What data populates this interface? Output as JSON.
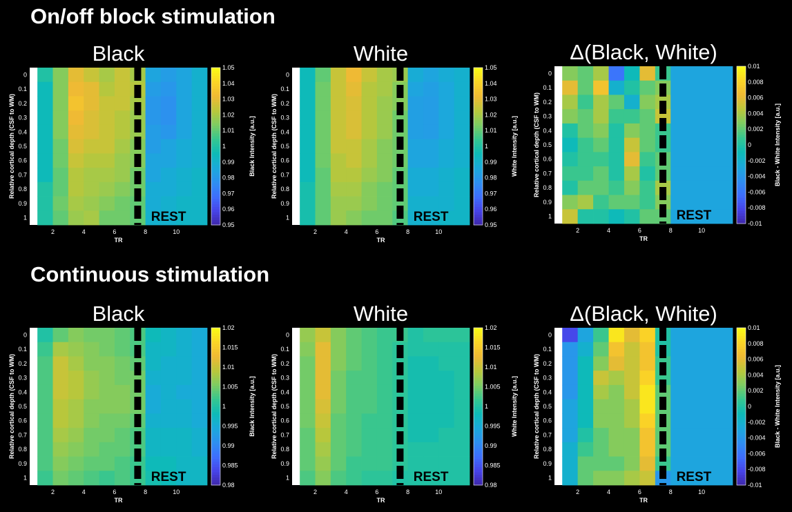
{
  "sections": [
    {
      "title": "On/off block stimulation"
    },
    {
      "title": "Continuous stimulation"
    }
  ],
  "rest_label": "REST",
  "colors": {
    "background": "#000000",
    "text": "#ffffff",
    "axes_bg": "#ffffff",
    "separator": "#000000",
    "rest_label": "#000000"
  },
  "colormap": [
    "#3e26a8",
    "#4744e8",
    "#3e6ffe",
    "#2d8ff0",
    "#1ba9db",
    "#0dbbb7",
    "#35c690",
    "#7ccc62",
    "#bac73b",
    "#efb934",
    "#fbd526",
    "#f9fb15"
  ],
  "chart_data": [
    {
      "type": "heatmap",
      "title": "Black",
      "xlabel": "TR",
      "ylabel": "Relative cortical depth (CSF to WM)",
      "colorbar_label": "Black Intensity [a.u.]",
      "clim": [
        0.95,
        1.05
      ],
      "colorbar_ticks": [
        "0.95",
        "0.96",
        "0.97",
        "0.98",
        "0.99",
        "1",
        "1.01",
        "1.02",
        "1.03",
        "1.04",
        "1.05"
      ],
      "x_ticks": [
        "2",
        "4",
        "6",
        "8",
        "10"
      ],
      "y_ticks": [
        "0",
        "0.1",
        "0.2",
        "0.3",
        "0.4",
        "0.5",
        "0.6",
        "0.7",
        "0.8",
        "0.9",
        "1"
      ],
      "n_tr": 11,
      "values": [
        [
          1.0,
          1.015,
          1.03,
          1.025,
          1.02,
          1.025,
          1.02,
          0.985,
          0.982,
          0.985,
          0.99
        ],
        [
          0.995,
          1.015,
          1.032,
          1.03,
          1.022,
          1.025,
          1.022,
          0.982,
          0.98,
          0.985,
          0.99
        ],
        [
          0.995,
          1.015,
          1.035,
          1.03,
          1.025,
          1.025,
          1.02,
          0.98,
          0.978,
          0.985,
          0.99
        ],
        [
          0.995,
          1.015,
          1.032,
          1.028,
          1.025,
          1.022,
          1.018,
          0.98,
          0.978,
          0.985,
          0.99
        ],
        [
          0.995,
          1.015,
          1.03,
          1.028,
          1.025,
          1.022,
          1.018,
          0.982,
          0.98,
          0.985,
          0.99
        ],
        [
          0.995,
          1.012,
          1.028,
          1.025,
          1.025,
          1.02,
          1.015,
          0.982,
          0.985,
          0.988,
          0.99
        ],
        [
          0.995,
          1.012,
          1.025,
          1.022,
          1.022,
          1.018,
          1.015,
          0.985,
          0.985,
          0.988,
          0.99
        ],
        [
          0.995,
          1.01,
          1.022,
          1.02,
          1.02,
          1.018,
          1.012,
          0.985,
          0.988,
          0.99,
          0.992
        ],
        [
          1.0,
          1.01,
          1.022,
          1.02,
          1.018,
          1.015,
          1.012,
          0.988,
          0.988,
          0.99,
          0.992
        ],
        [
          1.0,
          1.012,
          1.02,
          1.018,
          1.015,
          1.012,
          1.01,
          0.988,
          0.99,
          0.992,
          0.992
        ],
        [
          1.0,
          1.01,
          1.018,
          1.02,
          1.012,
          1.012,
          1.01,
          0.99,
          0.99,
          0.992,
          0.992
        ]
      ]
    },
    {
      "type": "heatmap",
      "title": "White",
      "xlabel": "TR",
      "ylabel": "Relative cortical depth (CSF to WM)",
      "colorbar_label": "White Intensity [a.u.]",
      "clim": [
        0.95,
        1.05
      ],
      "colorbar_ticks": [
        "0.95",
        "0.96",
        "0.97",
        "0.98",
        "0.99",
        "1",
        "1.01",
        "1.02",
        "1.03",
        "1.04",
        "1.05"
      ],
      "x_ticks": [
        "2",
        "4",
        "6",
        "8",
        "10"
      ],
      "y_ticks": [
        "0",
        "0.1",
        "0.2",
        "0.3",
        "0.4",
        "0.5",
        "0.6",
        "0.7",
        "0.8",
        "0.9",
        "1"
      ],
      "n_tr": 11,
      "values": [
        [
          0.995,
          1.01,
          1.025,
          1.032,
          1.025,
          1.02,
          1.018,
          0.988,
          0.985,
          0.988,
          0.99
        ],
        [
          0.995,
          1.012,
          1.025,
          1.03,
          1.022,
          1.02,
          1.015,
          0.985,
          0.983,
          0.986,
          0.99
        ],
        [
          0.995,
          1.012,
          1.025,
          1.028,
          1.022,
          1.018,
          1.015,
          0.983,
          0.982,
          0.986,
          0.99
        ],
        [
          0.995,
          1.012,
          1.025,
          1.028,
          1.022,
          1.018,
          1.012,
          0.983,
          0.982,
          0.986,
          0.99
        ],
        [
          0.995,
          1.012,
          1.025,
          1.028,
          1.022,
          1.018,
          1.012,
          0.983,
          0.982,
          0.986,
          0.99
        ],
        [
          0.995,
          1.012,
          1.025,
          1.025,
          1.02,
          1.015,
          1.012,
          0.985,
          0.985,
          0.988,
          0.99
        ],
        [
          0.995,
          1.012,
          1.022,
          1.025,
          1.02,
          1.015,
          1.012,
          0.985,
          0.985,
          0.988,
          0.99
        ],
        [
          0.995,
          1.01,
          1.022,
          1.022,
          1.018,
          1.015,
          1.01,
          0.988,
          0.988,
          0.99,
          0.992
        ],
        [
          0.998,
          1.01,
          1.02,
          1.02,
          1.015,
          1.012,
          1.01,
          0.988,
          0.988,
          0.99,
          0.992
        ],
        [
          0.998,
          1.01,
          1.018,
          1.018,
          1.015,
          1.012,
          1.01,
          0.99,
          0.99,
          0.99,
          0.992
        ],
        [
          0.998,
          1.01,
          1.018,
          1.015,
          1.012,
          1.012,
          1.008,
          0.99,
          0.99,
          0.992,
          0.992
        ]
      ]
    },
    {
      "type": "heatmap",
      "title": "Δ(Black, White)",
      "xlabel": "TR",
      "ylabel": "Relative cortical depth (CSF to WM)",
      "colorbar_label": "Black - White Intensity [a.u.]",
      "clim": [
        -0.01,
        0.01
      ],
      "colorbar_ticks": [
        "-0.01",
        "-0.008",
        "-0.006",
        "-0.004",
        "-0.002",
        "0",
        "0.002",
        "0.004",
        "0.006",
        "0.008",
        "0.01"
      ],
      "x_ticks": [
        "2",
        "4",
        "6",
        "8",
        "10"
      ],
      "y_ticks": [
        "0",
        "0.1",
        "0.2",
        "0.3",
        "0.4",
        "0.5",
        "0.6",
        "0.7",
        "0.8",
        "0.9",
        "1"
      ],
      "n_tr": 11,
      "values": [
        [
          0.003,
          0.002,
          0.004,
          -0.006,
          -0.001,
          0.006,
          0.001,
          -0.003,
          -0.003,
          -0.003,
          -0.003
        ],
        [
          0.006,
          0.002,
          0.007,
          -0.002,
          0.0,
          0.002,
          0.003,
          -0.003,
          -0.003,
          -0.003,
          -0.003
        ],
        [
          0.004,
          0.001,
          0.004,
          0.002,
          -0.002,
          0.003,
          0.004,
          -0.003,
          -0.003,
          -0.003,
          -0.003
        ],
        [
          0.003,
          0.002,
          0.004,
          0.001,
          0.001,
          0.002,
          0.005,
          -0.003,
          -0.003,
          -0.003,
          -0.003
        ],
        [
          0.0,
          0.002,
          0.003,
          0.0,
          0.003,
          0.002,
          0.001,
          -0.003,
          -0.003,
          -0.003,
          -0.003
        ],
        [
          -0.001,
          0.001,
          0.002,
          0.0,
          0.005,
          0.002,
          0.001,
          -0.003,
          -0.003,
          -0.003,
          -0.003
        ],
        [
          0.0,
          0.001,
          0.001,
          0.0,
          0.006,
          0.001,
          0.002,
          -0.003,
          -0.003,
          -0.003,
          -0.003
        ],
        [
          0.001,
          0.001,
          0.002,
          0.0,
          0.004,
          0.0,
          0.002,
          -0.003,
          -0.003,
          -0.003,
          -0.003
        ],
        [
          0.0,
          0.002,
          0.002,
          0.001,
          0.003,
          0.001,
          0.004,
          -0.003,
          -0.003,
          -0.003,
          -0.003
        ],
        [
          0.003,
          0.004,
          0.001,
          0.002,
          0.002,
          0.001,
          0.003,
          -0.003,
          -0.003,
          -0.003,
          -0.003
        ],
        [
          0.005,
          0.0,
          0.0,
          -0.001,
          0.0,
          0.002,
          0.002,
          -0.003,
          -0.003,
          -0.003,
          -0.003
        ]
      ]
    },
    {
      "type": "heatmap",
      "title": "Black",
      "xlabel": "TR",
      "ylabel": "Relative cortical depth (CSF to WM)",
      "colorbar_label": "Black Intensity [a.u.]",
      "clim": [
        0.98,
        1.02
      ],
      "colorbar_ticks": [
        "0.98",
        "0.985",
        "0.99",
        "0.995",
        "1",
        "1.005",
        "1.01",
        "1.015",
        "1.02"
      ],
      "x_ticks": [
        "2",
        "4",
        "6",
        "8",
        "10"
      ],
      "y_ticks": [
        "0",
        "0.1",
        "0.2",
        "0.3",
        "0.4",
        "0.5",
        "0.6",
        "0.7",
        "0.8",
        "0.9",
        "1"
      ],
      "n_tr": 11,
      "values": [
        [
          1.0,
          1.004,
          1.006,
          1.005,
          1.005,
          1.004,
          1.003,
          0.998,
          0.997,
          0.996,
          0.995
        ],
        [
          1.002,
          1.008,
          1.007,
          1.006,
          1.005,
          1.004,
          1.003,
          0.997,
          0.997,
          0.996,
          0.995
        ],
        [
          1.003,
          1.01,
          1.008,
          1.006,
          1.006,
          1.005,
          1.004,
          0.997,
          0.996,
          0.996,
          0.995
        ],
        [
          1.003,
          1.01,
          1.009,
          1.007,
          1.006,
          1.005,
          1.005,
          0.996,
          0.996,
          0.996,
          0.995
        ],
        [
          1.003,
          1.01,
          1.009,
          1.007,
          1.006,
          1.006,
          1.005,
          0.995,
          0.996,
          0.995,
          0.995
        ],
        [
          1.003,
          1.009,
          1.008,
          1.006,
          1.006,
          1.006,
          1.005,
          0.995,
          0.996,
          0.996,
          0.995
        ],
        [
          1.003,
          1.009,
          1.008,
          1.006,
          1.005,
          1.005,
          1.004,
          0.996,
          0.996,
          0.996,
          0.995
        ],
        [
          1.003,
          1.008,
          1.007,
          1.005,
          1.005,
          1.004,
          1.003,
          0.997,
          0.997,
          0.997,
          0.996
        ],
        [
          1.003,
          1.007,
          1.006,
          1.005,
          1.004,
          1.004,
          1.003,
          0.997,
          0.997,
          0.997,
          0.996
        ],
        [
          1.003,
          1.006,
          1.005,
          1.004,
          1.004,
          1.003,
          1.002,
          0.998,
          0.998,
          0.997,
          0.997
        ],
        [
          1.002,
          1.005,
          1.004,
          1.003,
          1.002,
          1.003,
          1.002,
          0.999,
          0.998,
          0.997,
          0.997
        ]
      ]
    },
    {
      "type": "heatmap",
      "title": "White",
      "xlabel": "TR",
      "ylabel": "Relative cortical depth (CSF to WM)",
      "colorbar_label": "White Intensity [a.u.]",
      "clim": [
        0.98,
        1.02
      ],
      "colorbar_ticks": [
        "0.98",
        "0.985",
        "0.99",
        "0.995",
        "1",
        "1.005",
        "1.01",
        "1.015",
        "1.02"
      ],
      "x_ticks": [
        "2",
        "4",
        "6",
        "8",
        "10"
      ],
      "y_ticks": [
        "0",
        "0.1",
        "0.2",
        "0.3",
        "0.4",
        "0.5",
        "0.6",
        "0.7",
        "0.8",
        "0.9",
        "1"
      ],
      "n_tr": 11,
      "values": [
        [
          1.007,
          1.01,
          1.006,
          1.004,
          1.003,
          1.002,
          1.002,
          1.0,
          1.001,
          1.001,
          1.001
        ],
        [
          1.006,
          1.012,
          1.006,
          1.004,
          1.003,
          1.002,
          1.001,
          1.0,
          1.0,
          1.0,
          1.0
        ],
        [
          1.005,
          1.012,
          1.006,
          1.004,
          1.003,
          1.002,
          1.001,
          0.999,
          0.999,
          1.0,
          1.0
        ],
        [
          1.005,
          1.012,
          1.005,
          1.003,
          1.003,
          1.002,
          1.001,
          0.999,
          0.999,
          0.999,
          1.0
        ],
        [
          1.005,
          1.012,
          1.005,
          1.003,
          1.003,
          1.002,
          1.001,
          0.999,
          0.999,
          0.999,
          1.0
        ],
        [
          1.005,
          1.011,
          1.005,
          1.003,
          1.003,
          1.002,
          1.001,
          0.999,
          0.999,
          0.999,
          1.0
        ],
        [
          1.005,
          1.01,
          1.004,
          1.003,
          1.002,
          1.002,
          1.001,
          0.999,
          0.999,
          0.999,
          1.0
        ],
        [
          1.004,
          1.009,
          1.004,
          1.003,
          1.002,
          1.002,
          1.001,
          0.999,
          0.999,
          1.0,
          1.0
        ],
        [
          1.004,
          1.008,
          1.004,
          1.003,
          1.002,
          1.002,
          1.001,
          1.0,
          1.0,
          1.0,
          1.0
        ],
        [
          1.004,
          1.007,
          1.004,
          1.002,
          1.002,
          1.002,
          1.001,
          1.0,
          1.0,
          1.0,
          1.0
        ],
        [
          1.003,
          1.006,
          1.003,
          1.002,
          1.001,
          1.001,
          1.0,
          1.0,
          1.0,
          1.0,
          1.0
        ]
      ]
    },
    {
      "type": "heatmap",
      "title": "Δ(Black, White)",
      "xlabel": "TR",
      "ylabel": "Relative cortical depth (CSF to WM)",
      "colorbar_label": "Black - White Intensity [a.u.]",
      "clim": [
        -0.01,
        0.01
      ],
      "colorbar_ticks": [
        "-0.01",
        "-0.008",
        "-0.006",
        "-0.004",
        "-0.002",
        "0",
        "0.002",
        "0.004",
        "0.006",
        "0.008",
        "0.01"
      ],
      "x_ticks": [
        "2",
        "4",
        "6",
        "8",
        "10"
      ],
      "y_ticks": [
        "0",
        "0.1",
        "0.2",
        "0.3",
        "0.4",
        "0.5",
        "0.6",
        "0.7",
        "0.8",
        "0.9",
        "1"
      ],
      "n_tr": 11,
      "values": [
        [
          -0.008,
          -0.003,
          0.001,
          0.009,
          0.006,
          0.008,
          0.0,
          -0.003,
          -0.003,
          -0.003,
          -0.003
        ],
        [
          -0.004,
          -0.002,
          0.002,
          0.007,
          0.005,
          0.007,
          0.0,
          -0.003,
          -0.003,
          -0.003,
          -0.003
        ],
        [
          -0.004,
          -0.001,
          0.003,
          0.006,
          0.005,
          0.007,
          0.001,
          -0.003,
          -0.003,
          -0.003,
          -0.003
        ],
        [
          -0.004,
          -0.001,
          0.005,
          0.004,
          0.005,
          0.008,
          0.001,
          -0.003,
          -0.003,
          -0.003,
          -0.003
        ],
        [
          -0.004,
          -0.001,
          0.004,
          0.003,
          0.005,
          0.009,
          0.002,
          -0.003,
          -0.003,
          -0.003,
          -0.003
        ],
        [
          -0.003,
          -0.001,
          0.003,
          0.003,
          0.004,
          0.009,
          0.002,
          -0.003,
          -0.003,
          -0.003,
          -0.003
        ],
        [
          -0.003,
          -0.001,
          0.003,
          0.003,
          0.004,
          0.008,
          0.002,
          -0.003,
          -0.003,
          -0.003,
          -0.003
        ],
        [
          -0.003,
          0.0,
          0.002,
          0.003,
          0.003,
          0.007,
          0.002,
          -0.003,
          -0.003,
          -0.003,
          -0.003
        ],
        [
          -0.002,
          0.001,
          0.002,
          0.003,
          0.003,
          0.007,
          0.002,
          -0.003,
          -0.003,
          -0.003,
          -0.003
        ],
        [
          -0.002,
          0.002,
          0.002,
          0.002,
          0.003,
          0.006,
          0.001,
          -0.003,
          -0.003,
          -0.003,
          -0.003
        ],
        [
          -0.002,
          0.002,
          0.003,
          0.003,
          0.004,
          0.005,
          -0.004,
          -0.003,
          -0.003,
          -0.003,
          -0.003
        ]
      ]
    }
  ]
}
